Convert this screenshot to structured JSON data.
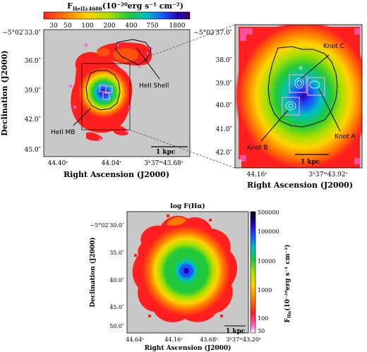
{
  "colors": {
    "background": "#c8c8c8",
    "outline": "#000000",
    "box_pink": "#f2a6cc",
    "contour_white": "#ffffff"
  },
  "colormap": [
    "#ffffff",
    "#ff66cc",
    "#ff1f1f",
    "#ff7a00",
    "#ffd400",
    "#a8e000",
    "#22c93a",
    "#00c0c0",
    "#1a52ff",
    "#2a00b0",
    "#3a0060",
    "#000000"
  ],
  "panel_a": {
    "colorbar_title_main": "F",
    "colorbar_title_sub": "HeIIλ4686",
    "colorbar_title_units": "(10⁻²⁰erg s⁻¹ cm⁻²)",
    "colorbar_ticks": [
      "30",
      "50",
      "100",
      "200",
      "400",
      "750",
      "1800"
    ],
    "ylabel": "Declination (J2000)",
    "xlabel": "Right Ascension (J2000)",
    "y_ticks": [
      "−5°02′33.0″",
      "36.0″",
      "39.0″",
      "42.0″",
      "45.0″"
    ],
    "x_ticks": [
      "44.40ˢ",
      "44.04ˢ",
      "3ʰ37ᵐ43.68ˢ"
    ],
    "scale_bar": "1 kpc",
    "label_shell": "HeII Shell",
    "label_mb": "HeII MB"
  },
  "panel_b": {
    "y_ticks": [
      "−5°02′37.0″",
      "38.0″",
      "39.0″",
      "40.0″",
      "41.0″",
      "42.0″"
    ],
    "x_ticks": [
      "44.16ˢ",
      "3ʰ37ᵐ43.92ˢ"
    ],
    "xlabel": "Right Ascension (J2000)",
    "scale_bar": "1 kpc",
    "knot_a": "Knot A",
    "knot_b": "Knot B",
    "knot_c": "Knot C"
  },
  "panel_c": {
    "title": "log F(Hα)",
    "ylabel": "Declination (J2000)",
    "xlabel": "Right Ascension (J2000)",
    "y_ticks": [
      "−5°02′30.0″",
      "35.0″",
      "40.0″",
      "45.0″",
      "50.0″"
    ],
    "x_ticks": [
      "44.64ˢ",
      "44.16ˢ",
      "43.68ˢ",
      "3ʰ37ᵐ43.20ˢ"
    ],
    "colorbar_ticks": [
      "500000",
      "100000",
      "10000",
      "1000",
      "100",
      "30"
    ],
    "colorbar_label": "F(10⁻²⁰erg s⁻¹ cm⁻²)",
    "colorbar_label_sub": "Hα",
    "scale_bar": "1 kpc"
  }
}
